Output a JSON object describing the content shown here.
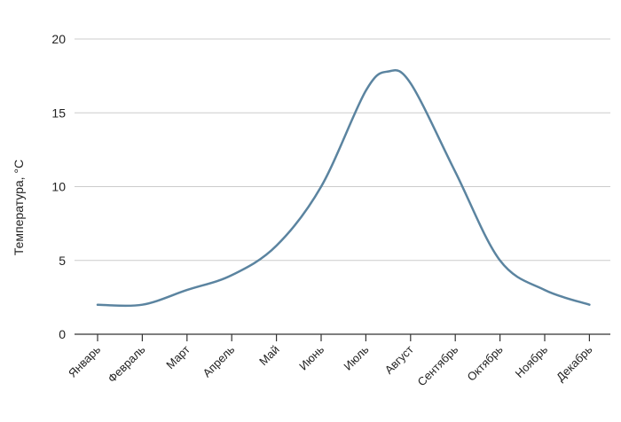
{
  "chart_data": {
    "type": "line",
    "title": "",
    "xlabel": "",
    "ylabel": "Температура, °C",
    "categories": [
      "Январь",
      "Февраль",
      "Март",
      "Апрель",
      "Май",
      "Июнь",
      "Июль",
      "Август",
      "Сентябрь",
      "Октябрь",
      "Ноябрь",
      "Декабрь"
    ],
    "series": [
      {
        "name": "",
        "color": "#5b84a0",
        "values": [
          2.0,
          2.0,
          3.0,
          4.0,
          6.0,
          10.0,
          16.5,
          17.0,
          11.0,
          5.0,
          3.0,
          2.0
        ],
        "peak": {
          "x": 6.5,
          "y": 17.8
        }
      }
    ],
    "ylim": [
      0,
      20
    ],
    "yticks": [
      0,
      5,
      10,
      15,
      20
    ],
    "grid": true,
    "legend": "none"
  }
}
